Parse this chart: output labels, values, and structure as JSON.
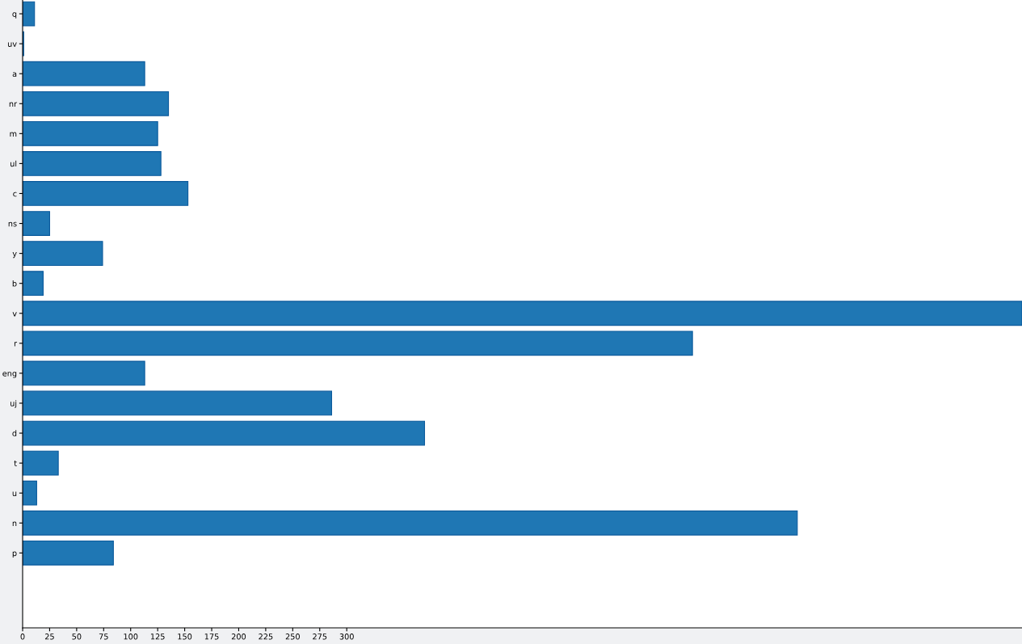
{
  "chart_data": {
    "type": "bar",
    "orientation": "horizontal",
    "categories": [
      "q",
      "uv",
      "a",
      "nr",
      "m",
      "ul",
      "c",
      "ns",
      "y",
      "b",
      "v",
      "r",
      "eng",
      "uj",
      "d",
      "t",
      "u",
      "n",
      "p"
    ],
    "values": [
      11,
      1,
      113,
      135,
      125,
      128,
      153,
      25,
      74,
      19,
      925,
      620,
      113,
      286,
      372,
      33,
      13,
      717,
      84
    ],
    "color": "#1f77b4",
    "xlim": [
      0,
      925
    ],
    "xticks": [
      0,
      25,
      50,
      75,
      100,
      125,
      150,
      175,
      200,
      225,
      250,
      275,
      300
    ],
    "grid": false
  }
}
